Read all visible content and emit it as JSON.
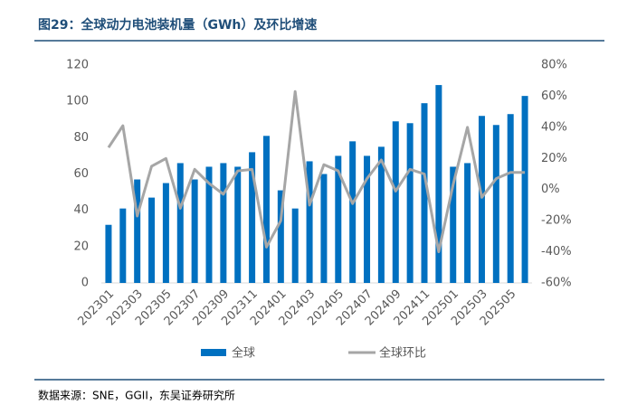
{
  "chart_data": {
    "type": "bar_line",
    "title": "图29：全球动力电池装机量（GWh）及环比增速",
    "source": "数据来源：SNE，GGII，东吴证券研究所",
    "categories": [
      "202301",
      null,
      "202303",
      null,
      "202305",
      null,
      "202307",
      null,
      "202309",
      null,
      "202311",
      null,
      "202401",
      null,
      "202403",
      null,
      "202405",
      null,
      "202407",
      null,
      "202409",
      null,
      "202411",
      null,
      "202501",
      null,
      "202503",
      null,
      "202505",
      null
    ],
    "series": [
      {
        "name": "全球",
        "type": "bar",
        "color": "#0070c0",
        "values": [
          32,
          41,
          57,
          47,
          55,
          66,
          57,
          64,
          66,
          64,
          72,
          81,
          51,
          41,
          67,
          60,
          70,
          78,
          70,
          75,
          89,
          88,
          99,
          109,
          64,
          66,
          92,
          87,
          93,
          103
        ]
      },
      {
        "name": "全球环比",
        "type": "line",
        "axis": "y2",
        "color": "#a6a6a6",
        "values": [
          27,
          41,
          -17,
          15,
          20,
          -12,
          13,
          4,
          -3,
          12,
          13,
          -37,
          -20,
          63,
          -10,
          16,
          12,
          -9,
          7,
          19,
          -1,
          13,
          10,
          -40,
          3,
          40,
          -5,
          7,
          11,
          11
        ]
      }
    ],
    "ylim": [
      0,
      120
    ],
    "yticks": [
      0,
      20,
      40,
      60,
      80,
      100,
      120
    ],
    "y2lim": [
      -60,
      80
    ],
    "y2ticks": [
      {
        "value": -60,
        "label": "-60%"
      },
      {
        "value": -40,
        "label": "-40%"
      },
      {
        "value": -20,
        "label": "-20%"
      },
      {
        "value": 0,
        "label": "0%"
      },
      {
        "value": 20,
        "label": "20%"
      },
      {
        "value": 40,
        "label": "40%"
      },
      {
        "value": 60,
        "label": "60%"
      },
      {
        "value": 80,
        "label": "80%"
      }
    ],
    "legend": "bottom"
  }
}
